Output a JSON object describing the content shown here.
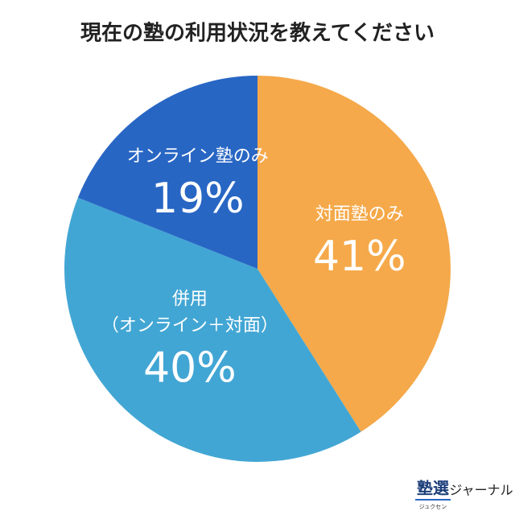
{
  "chart_data": {
    "type": "pie",
    "title": "現在の塾の利用状況を教えてください",
    "categories": [
      "対面塾のみ",
      "併用\n（オンライン＋対面）",
      "オンライン塾のみ"
    ],
    "values": [
      41,
      40,
      19
    ],
    "value_labels": [
      "41%",
      "40%",
      "19%"
    ],
    "colors": [
      "#f5a94a",
      "#42a6d4",
      "#2866c4"
    ]
  },
  "logo": {
    "name": "塾選",
    "reading": "ジュクセン",
    "suffix": "ジャーナル"
  }
}
